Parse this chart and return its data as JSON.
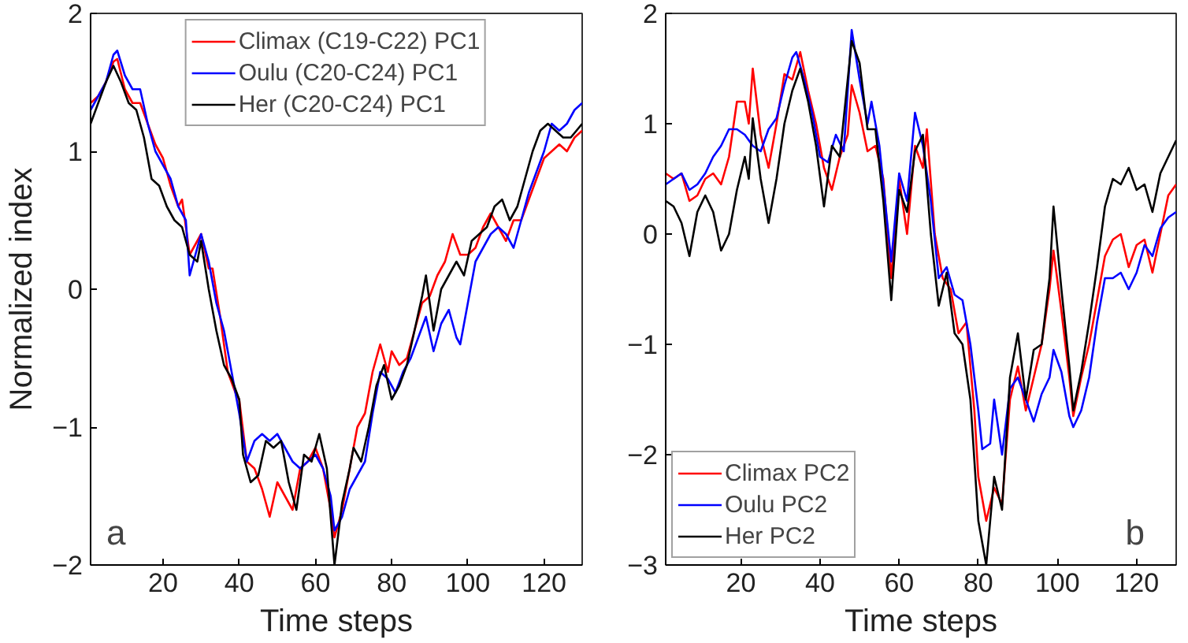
{
  "chart_data": [
    {
      "type": "line",
      "xlabel": "Time steps",
      "ylabel": "Normalized index",
      "xlim": [
        1,
        130
      ],
      "ylim": [
        -2,
        2
      ],
      "xticks": [
        20,
        40,
        60,
        80,
        100,
        120
      ],
      "yticks": [
        -2,
        -1,
        0,
        1,
        2
      ],
      "grid": false,
      "legend": "top right",
      "annotations": [
        "a"
      ],
      "series": [
        {
          "name": "Climax (C19-C22) PC1",
          "color": "#ff0000",
          "x": [
            1,
            3,
            5,
            7,
            8,
            10,
            12,
            14,
            16,
            18,
            20,
            22,
            24,
            25,
            27,
            29,
            30,
            32,
            33,
            35,
            37,
            39,
            40,
            42,
            44,
            46,
            48,
            50,
            52,
            54,
            56,
            58,
            60,
            62,
            64,
            65,
            67,
            69,
            71,
            73,
            75,
            77,
            79,
            80,
            82,
            84,
            86,
            88,
            90,
            92,
            94,
            96,
            98,
            100,
            102,
            104,
            106,
            108,
            110,
            112,
            114,
            116,
            118,
            120,
            122,
            124,
            126,
            128,
            130
          ],
          "values": [
            1.35,
            1.4,
            1.5,
            1.65,
            1.67,
            1.45,
            1.35,
            1.35,
            1.2,
            1.05,
            0.95,
            0.75,
            0.6,
            0.65,
            0.25,
            0.35,
            0.4,
            0.15,
            0.15,
            -0.2,
            -0.6,
            -0.75,
            -0.8,
            -1.25,
            -1.3,
            -1.45,
            -1.65,
            -1.4,
            -1.5,
            -1.6,
            -1.3,
            -1.25,
            -1.15,
            -1.3,
            -1.6,
            -1.8,
            -1.6,
            -1.3,
            -1.0,
            -0.9,
            -0.6,
            -0.4,
            -0.6,
            -0.45,
            -0.55,
            -0.5,
            -0.3,
            -0.1,
            -0.05,
            0.1,
            0.2,
            0.4,
            0.25,
            0.25,
            0.3,
            0.45,
            0.55,
            0.45,
            0.35,
            0.5,
            0.5,
            0.65,
            0.8,
            0.95,
            1.0,
            1.05,
            1.0,
            1.1,
            1.15
          ]
        },
        {
          "name": "Oulu (C20-C24) PC1",
          "color": "#0000ff",
          "x": [
            1,
            3,
            5,
            7,
            8,
            10,
            12,
            14,
            16,
            18,
            20,
            22,
            24,
            26,
            27,
            29,
            30,
            32,
            34,
            36,
            38,
            40,
            42,
            44,
            46,
            48,
            50,
            52,
            54,
            56,
            58,
            60,
            62,
            64,
            65,
            67,
            69,
            71,
            73,
            75,
            77,
            79,
            81,
            83,
            85,
            87,
            89,
            91,
            93,
            95,
            97,
            98,
            100,
            102,
            104,
            106,
            108,
            110,
            112,
            114,
            116,
            118,
            120,
            122,
            124,
            126,
            128,
            130
          ],
          "values": [
            1.3,
            1.4,
            1.5,
            1.7,
            1.73,
            1.55,
            1.45,
            1.45,
            1.2,
            1.0,
            0.9,
            0.8,
            0.6,
            0.5,
            0.1,
            0.3,
            0.4,
            0.2,
            -0.1,
            -0.3,
            -0.6,
            -0.9,
            -1.25,
            -1.1,
            -1.05,
            -1.1,
            -1.05,
            -1.15,
            -1.25,
            -1.3,
            -1.25,
            -1.2,
            -1.3,
            -1.5,
            -1.75,
            -1.65,
            -1.45,
            -1.35,
            -1.25,
            -0.9,
            -0.6,
            -0.65,
            -0.75,
            -0.6,
            -0.5,
            -0.35,
            -0.2,
            -0.45,
            -0.25,
            -0.15,
            -0.35,
            -0.4,
            -0.1,
            0.2,
            0.3,
            0.4,
            0.45,
            0.4,
            0.3,
            0.5,
            0.7,
            0.85,
            1.0,
            1.2,
            1.15,
            1.2,
            1.3,
            1.35
          ]
        },
        {
          "name": "Her (C20-C24) PC1",
          "color": "#000000",
          "x": [
            1,
            3,
            5,
            7,
            9,
            11,
            13,
            15,
            17,
            19,
            21,
            23,
            25,
            27,
            29,
            30,
            32,
            34,
            36,
            38,
            40,
            41,
            43,
            45,
            47,
            49,
            51,
            53,
            55,
            57,
            59,
            61,
            63,
            65,
            67,
            69,
            70,
            72,
            74,
            76,
            78,
            80,
            82,
            84,
            86,
            88,
            89,
            91,
            93,
            95,
            97,
            99,
            101,
            103,
            105,
            107,
            109,
            111,
            113,
            115,
            117,
            119,
            121,
            123,
            125,
            127,
            130
          ],
          "values": [
            1.2,
            1.35,
            1.5,
            1.62,
            1.5,
            1.35,
            1.3,
            1.1,
            0.8,
            0.75,
            0.6,
            0.5,
            0.45,
            0.25,
            0.2,
            0.35,
            0.0,
            -0.3,
            -0.55,
            -0.65,
            -0.8,
            -1.2,
            -1.4,
            -1.35,
            -1.1,
            -1.15,
            -1.1,
            -1.4,
            -1.6,
            -1.2,
            -1.25,
            -1.05,
            -1.3,
            -2.0,
            -1.55,
            -1.3,
            -1.15,
            -1.25,
            -1.0,
            -0.7,
            -0.55,
            -0.8,
            -0.7,
            -0.55,
            -0.3,
            -0.05,
            0.1,
            -0.3,
            0.0,
            0.1,
            0.2,
            0.1,
            0.35,
            0.4,
            0.45,
            0.6,
            0.65,
            0.5,
            0.6,
            0.8,
            1.0,
            1.15,
            1.2,
            1.15,
            1.1,
            1.1,
            1.2
          ]
        }
      ]
    },
    {
      "type": "line",
      "xlabel": "Time steps",
      "xlim": [
        1,
        130
      ],
      "ylim": [
        -3,
        2
      ],
      "xticks": [
        20,
        40,
        60,
        80,
        100,
        120
      ],
      "yticks": [
        -3,
        -2,
        -1,
        0,
        1,
        2
      ],
      "grid": false,
      "legend": "bottom left",
      "annotations": [
        "b"
      ],
      "series": [
        {
          "name": "Climax PC2",
          "color": "#ff0000",
          "x": [
            1,
            3,
            5,
            7,
            9,
            11,
            13,
            15,
            17,
            19,
            21,
            22,
            23,
            25,
            27,
            29,
            31,
            33,
            35,
            37,
            39,
            41,
            43,
            45,
            47,
            48,
            50,
            52,
            54,
            56,
            58,
            60,
            62,
            64,
            66,
            67,
            69,
            71,
            73,
            75,
            77,
            79,
            80,
            82,
            84,
            86,
            88,
            90,
            92,
            94,
            96,
            98,
            99,
            101,
            103,
            104,
            106,
            108,
            110,
            112,
            114,
            116,
            118,
            120,
            122,
            124,
            126,
            128,
            130
          ],
          "values": [
            0.55,
            0.5,
            0.55,
            0.3,
            0.35,
            0.5,
            0.55,
            0.45,
            0.7,
            1.2,
            1.2,
            1.0,
            1.5,
            0.9,
            0.6,
            1.0,
            1.45,
            1.4,
            1.65,
            1.3,
            1.0,
            0.6,
            0.4,
            0.7,
            0.9,
            1.35,
            1.1,
            0.75,
            0.8,
            0.5,
            -0.4,
            0.5,
            0.0,
            0.8,
            0.6,
            0.95,
            0.0,
            -0.4,
            -0.5,
            -0.9,
            -0.8,
            -1.6,
            -2.2,
            -2.6,
            -2.3,
            -2.45,
            -1.5,
            -1.2,
            -1.6,
            -1.3,
            -1.0,
            -0.5,
            -0.15,
            -0.7,
            -1.3,
            -1.65,
            -1.3,
            -1.0,
            -0.6,
            -0.2,
            -0.05,
            0.0,
            -0.3,
            -0.1,
            -0.05,
            -0.35,
            0.0,
            0.35,
            0.45
          ]
        },
        {
          "name": "Oulu PC2",
          "color": "#0000ff",
          "x": [
            1,
            3,
            5,
            7,
            9,
            11,
            13,
            15,
            17,
            19,
            21,
            23,
            25,
            27,
            29,
            31,
            33,
            34,
            36,
            38,
            40,
            42,
            44,
            46,
            48,
            50,
            52,
            53,
            55,
            57,
            58,
            60,
            62,
            64,
            66,
            68,
            70,
            72,
            74,
            76,
            78,
            80,
            81,
            83,
            84,
            86,
            88,
            90,
            92,
            94,
            96,
            98,
            99,
            101,
            103,
            104,
            106,
            108,
            110,
            112,
            114,
            116,
            118,
            120,
            122,
            124,
            126,
            128,
            130
          ],
          "values": [
            0.45,
            0.5,
            0.55,
            0.4,
            0.45,
            0.55,
            0.7,
            0.8,
            0.95,
            0.95,
            0.9,
            0.8,
            0.75,
            0.95,
            1.05,
            1.35,
            1.6,
            1.65,
            1.4,
            1.1,
            0.7,
            0.65,
            0.9,
            0.75,
            1.85,
            1.4,
            1.0,
            1.2,
            0.8,
            0.1,
            -0.25,
            0.55,
            0.3,
            1.1,
            0.8,
            0.3,
            -0.4,
            -0.3,
            -0.55,
            -0.6,
            -1.0,
            -1.6,
            -1.95,
            -1.9,
            -1.5,
            -2.0,
            -1.4,
            -1.3,
            -1.5,
            -1.7,
            -1.45,
            -1.3,
            -1.05,
            -1.25,
            -1.65,
            -1.75,
            -1.6,
            -1.3,
            -0.8,
            -0.4,
            -0.4,
            -0.35,
            -0.5,
            -0.35,
            -0.1,
            -0.2,
            0.05,
            0.15,
            0.2
          ]
        },
        {
          "name": "Her PC2",
          "color": "#000000",
          "x": [
            1,
            3,
            5,
            7,
            9,
            11,
            13,
            15,
            17,
            19,
            21,
            22,
            23,
            25,
            27,
            29,
            31,
            33,
            35,
            37,
            39,
            41,
            43,
            45,
            48,
            50,
            52,
            54,
            56,
            58,
            60,
            62,
            64,
            66,
            68,
            70,
            72,
            74,
            76,
            78,
            80,
            82,
            84,
            86,
            88,
            90,
            92,
            94,
            96,
            98,
            99,
            101,
            103,
            104,
            106,
            108,
            110,
            112,
            114,
            116,
            118,
            120,
            122,
            124,
            126,
            128,
            130
          ],
          "values": [
            0.3,
            0.25,
            0.1,
            -0.2,
            0.2,
            0.35,
            0.2,
            -0.15,
            0.0,
            0.4,
            0.7,
            0.5,
            1.05,
            0.5,
            0.1,
            0.5,
            1.0,
            1.3,
            1.5,
            1.2,
            0.8,
            0.25,
            0.8,
            0.7,
            1.75,
            1.55,
            0.95,
            0.95,
            0.3,
            -0.6,
            0.4,
            0.2,
            0.75,
            0.9,
            0.0,
            -0.65,
            -0.35,
            -0.9,
            -1.0,
            -1.5,
            -2.6,
            -3.0,
            -2.2,
            -2.5,
            -1.3,
            -0.9,
            -1.5,
            -1.05,
            -1.0,
            -0.4,
            0.25,
            -0.5,
            -1.2,
            -1.6,
            -1.25,
            -0.8,
            -0.3,
            0.25,
            0.5,
            0.45,
            0.6,
            0.4,
            0.45,
            0.2,
            0.55,
            0.7,
            0.85
          ]
        }
      ]
    }
  ]
}
